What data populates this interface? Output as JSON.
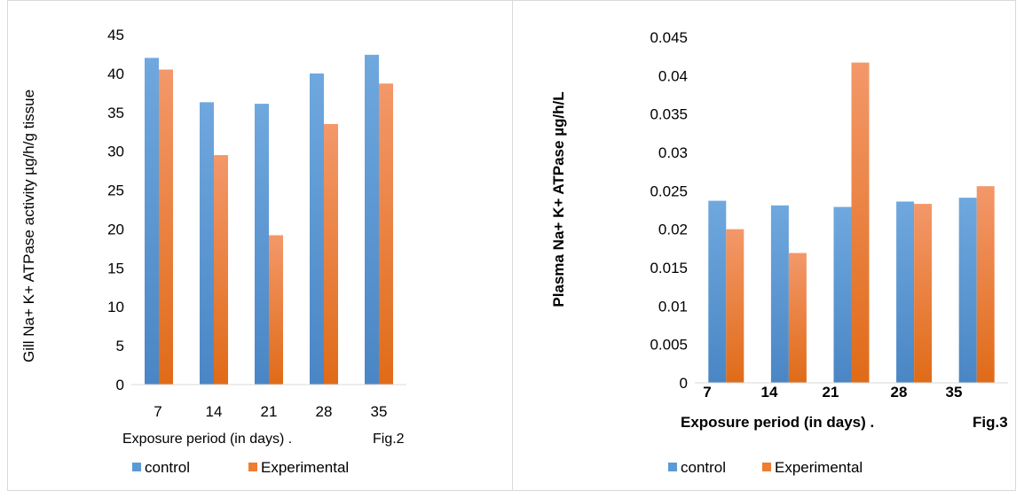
{
  "colors": {
    "control": "#5b9bd5",
    "experimental": "#ed7d31",
    "axis": "#d9d9d9",
    "text": "#000000"
  },
  "chart_data": [
    {
      "type": "bar",
      "categories": [
        "7",
        "14",
        "21",
        "28",
        "35"
      ],
      "series": [
        {
          "name": "control",
          "values": [
            42,
            36.3,
            36.1,
            40,
            42.4
          ]
        },
        {
          "name": "Experimental",
          "values": [
            40.5,
            29.5,
            19.2,
            33.5,
            38.7
          ]
        }
      ],
      "title": "",
      "xlabel": "Exposure period (in days) .",
      "figure_label": "Fig.2",
      "ylabel": "Gill Na+ K+ ATPase activity µg/h/g tissue",
      "ylim": [
        0,
        45
      ],
      "yticks": [
        "0",
        "5",
        "10",
        "15",
        "20",
        "25",
        "30",
        "35",
        "40",
        "45"
      ],
      "grid": false,
      "legend": "bottom"
    },
    {
      "type": "bar",
      "categories": [
        "7",
        "14",
        "21",
        "28",
        "35"
      ],
      "series": [
        {
          "name": "control",
          "values": [
            0.0237,
            0.0231,
            0.0229,
            0.0236,
            0.0241
          ]
        },
        {
          "name": "Experimental",
          "values": [
            0.02,
            0.0169,
            0.0417,
            0.0233,
            0.0256
          ]
        }
      ],
      "title": "",
      "xlabel": "Exposure period (in days) .",
      "figure_label": "Fig.3",
      "ylabel": "Plasma  Na+ K+ ATPase  µg/h/L",
      "ylim": [
        0,
        0.045
      ],
      "yticks": [
        "0",
        "0.005",
        "0.01",
        "0.015",
        "0.02",
        "0.025",
        "0.03",
        "0.035",
        "0.04",
        "0.045"
      ],
      "grid": false,
      "legend": "bottom"
    }
  ]
}
